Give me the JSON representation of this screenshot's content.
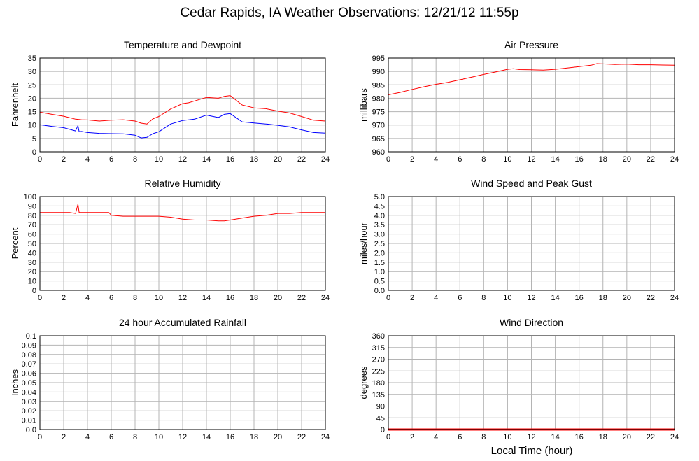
{
  "page": {
    "title": "Cedar Rapids, IA Weather Observations: 12/21/12 11:55p",
    "xlabel": "Local Time (hour)"
  },
  "colors": {
    "red": "#ff0000",
    "blue": "#0000ff",
    "grid": "#b4b4b4",
    "axis": "#000000"
  },
  "chart_data": [
    {
      "type": "line",
      "title": "Temperature and Dewpoint",
      "ylabel": "Fahrenheit",
      "xlim": [
        0,
        24
      ],
      "ylim": [
        0,
        35
      ],
      "xticks": [
        "0",
        "2",
        "4",
        "6",
        "8",
        "10",
        "12",
        "14",
        "16",
        "18",
        "20",
        "22",
        "24"
      ],
      "yticks": [
        "0",
        "5",
        "10",
        "15",
        "20",
        "25",
        "30",
        "35"
      ],
      "grid": true,
      "series": [
        {
          "color": "red",
          "x": [
            0,
            1,
            2,
            3,
            3.5,
            4,
            5,
            6,
            7,
            8,
            8.5,
            9,
            9.5,
            10,
            11,
            12,
            12.5,
            13,
            14,
            15,
            15.5,
            16,
            17,
            18,
            19,
            20,
            21,
            22,
            23,
            24
          ],
          "y": [
            14.8,
            14.0,
            13.3,
            12.2,
            12.0,
            11.9,
            11.5,
            11.8,
            12.0,
            11.5,
            10.7,
            10.4,
            12.3,
            13.2,
            16.0,
            18.0,
            18.3,
            19.0,
            20.3,
            20.0,
            20.7,
            21.0,
            17.5,
            16.4,
            16.1,
            15.2,
            14.5,
            13.2,
            11.8,
            11.5
          ]
        },
        {
          "color": "blue",
          "x": [
            0,
            1,
            2,
            3,
            3.2,
            3.3,
            3.5,
            4,
            5,
            6,
            7,
            8,
            8.5,
            9,
            9.5,
            10,
            11,
            12,
            13,
            14,
            15,
            15.5,
            16,
            17,
            18,
            19,
            20,
            21,
            22,
            23,
            24
          ],
          "y": [
            10.1,
            9.5,
            9.0,
            7.8,
            9.8,
            7.5,
            7.6,
            7.2,
            6.9,
            6.8,
            6.7,
            6.2,
            5.2,
            5.4,
            6.8,
            7.5,
            10.4,
            11.7,
            12.2,
            13.7,
            12.8,
            14.0,
            14.3,
            11.2,
            10.8,
            10.4,
            9.9,
            9.3,
            8.2,
            7.2,
            7.0
          ]
        }
      ]
    },
    {
      "type": "line",
      "title": "Air Pressure",
      "ylabel": "millibars",
      "xlim": [
        0,
        24
      ],
      "ylim": [
        960,
        995
      ],
      "xticks": [
        "0",
        "2",
        "4",
        "6",
        "8",
        "10",
        "12",
        "14",
        "16",
        "18",
        "20",
        "22",
        "24"
      ],
      "yticks": [
        "960",
        "965",
        "970",
        "975",
        "980",
        "985",
        "990",
        "995"
      ],
      "grid": true,
      "series": [
        {
          "color": "red",
          "x": [
            0,
            1,
            2,
            3,
            4,
            5,
            6,
            7,
            8,
            9,
            10,
            10.5,
            11,
            12,
            13,
            14,
            15,
            16,
            17,
            17.5,
            18,
            19,
            20,
            21,
            22,
            23,
            24
          ],
          "y": [
            981.3,
            982.2,
            983.3,
            984.3,
            985.2,
            985.9,
            986.9,
            987.9,
            988.9,
            989.8,
            990.8,
            991.0,
            990.7,
            990.6,
            990.5,
            990.8,
            991.3,
            991.8,
            992.3,
            992.9,
            992.8,
            992.6,
            992.7,
            992.5,
            992.5,
            992.4,
            992.3
          ]
        }
      ]
    },
    {
      "type": "line",
      "title": "Relative Humidity",
      "ylabel": "Percent",
      "xlim": [
        0,
        24
      ],
      "ylim": [
        0,
        100
      ],
      "xticks": [
        "0",
        "2",
        "4",
        "6",
        "8",
        "10",
        "12",
        "14",
        "16",
        "18",
        "20",
        "22",
        "24"
      ],
      "yticks": [
        "0",
        "10",
        "20",
        "30",
        "40",
        "50",
        "60",
        "70",
        "80",
        "90",
        "100"
      ],
      "grid": true,
      "series": [
        {
          "color": "red",
          "x": [
            0,
            1,
            2,
            2.5,
            3.0,
            3.2,
            3.3,
            3.5,
            4,
            5,
            5.8,
            6,
            7,
            8,
            9,
            10,
            11,
            12,
            13,
            14,
            15,
            15.5,
            16,
            17,
            18,
            19,
            20,
            21,
            22,
            23,
            24
          ],
          "y": [
            83,
            83,
            83,
            83,
            82,
            92,
            83,
            83,
            83,
            83,
            83,
            80,
            79,
            79,
            79,
            79,
            78,
            76,
            75,
            75,
            74,
            74,
            75,
            77,
            79,
            80,
            82,
            82,
            83,
            83,
            83
          ]
        }
      ]
    },
    {
      "type": "line",
      "title": "Wind Speed and Peak Gust",
      "ylabel": "miles/hour",
      "xlim": [
        0,
        24
      ],
      "ylim": [
        0,
        5
      ],
      "xticks": [
        "0",
        "2",
        "4",
        "6",
        "8",
        "10",
        "12",
        "14",
        "16",
        "18",
        "20",
        "22",
        "24"
      ],
      "yticks": [
        "0.0",
        "0.5",
        "1.0",
        "1.5",
        "2.0",
        "2.5",
        "3.0",
        "3.5",
        "4.0",
        "4.5",
        "5.0"
      ],
      "grid": true,
      "series": [
        {
          "color": "red",
          "x": [
            0,
            24
          ],
          "y": [
            0,
            0
          ]
        },
        {
          "color": "blue",
          "x": [
            0,
            24
          ],
          "y": [
            0,
            0
          ]
        }
      ]
    },
    {
      "type": "line",
      "title": "24 hour Accumulated Rainfall",
      "ylabel": "Inches",
      "xlim": [
        0,
        24
      ],
      "ylim": [
        0,
        0.1
      ],
      "xticks": [
        "0",
        "2",
        "4",
        "6",
        "8",
        "10",
        "12",
        "14",
        "16",
        "18",
        "20",
        "22",
        "24"
      ],
      "yticks": [
        "0.0",
        "0.01",
        "0.02",
        "0.03",
        "0.04",
        "0.05",
        "0.06",
        "0.07",
        "0.08",
        "0.09",
        "0.1"
      ],
      "grid": true,
      "series": [
        {
          "color": "red",
          "x": [
            0,
            24
          ],
          "y": [
            0,
            0
          ]
        }
      ]
    },
    {
      "type": "line",
      "title": "Wind Direction",
      "ylabel": "degrees",
      "xlim": [
        0,
        24
      ],
      "ylim": [
        0,
        360
      ],
      "xticks": [
        "0",
        "2",
        "4",
        "6",
        "8",
        "10",
        "12",
        "14",
        "16",
        "18",
        "20",
        "22",
        "24"
      ],
      "yticks": [
        "0",
        "45",
        "90",
        "135",
        "180",
        "225",
        "270",
        "315",
        "360"
      ],
      "grid": true,
      "series": [
        {
          "color": "red",
          "x": [
            0,
            24
          ],
          "y": [
            0,
            0
          ],
          "thick": true
        }
      ]
    }
  ]
}
